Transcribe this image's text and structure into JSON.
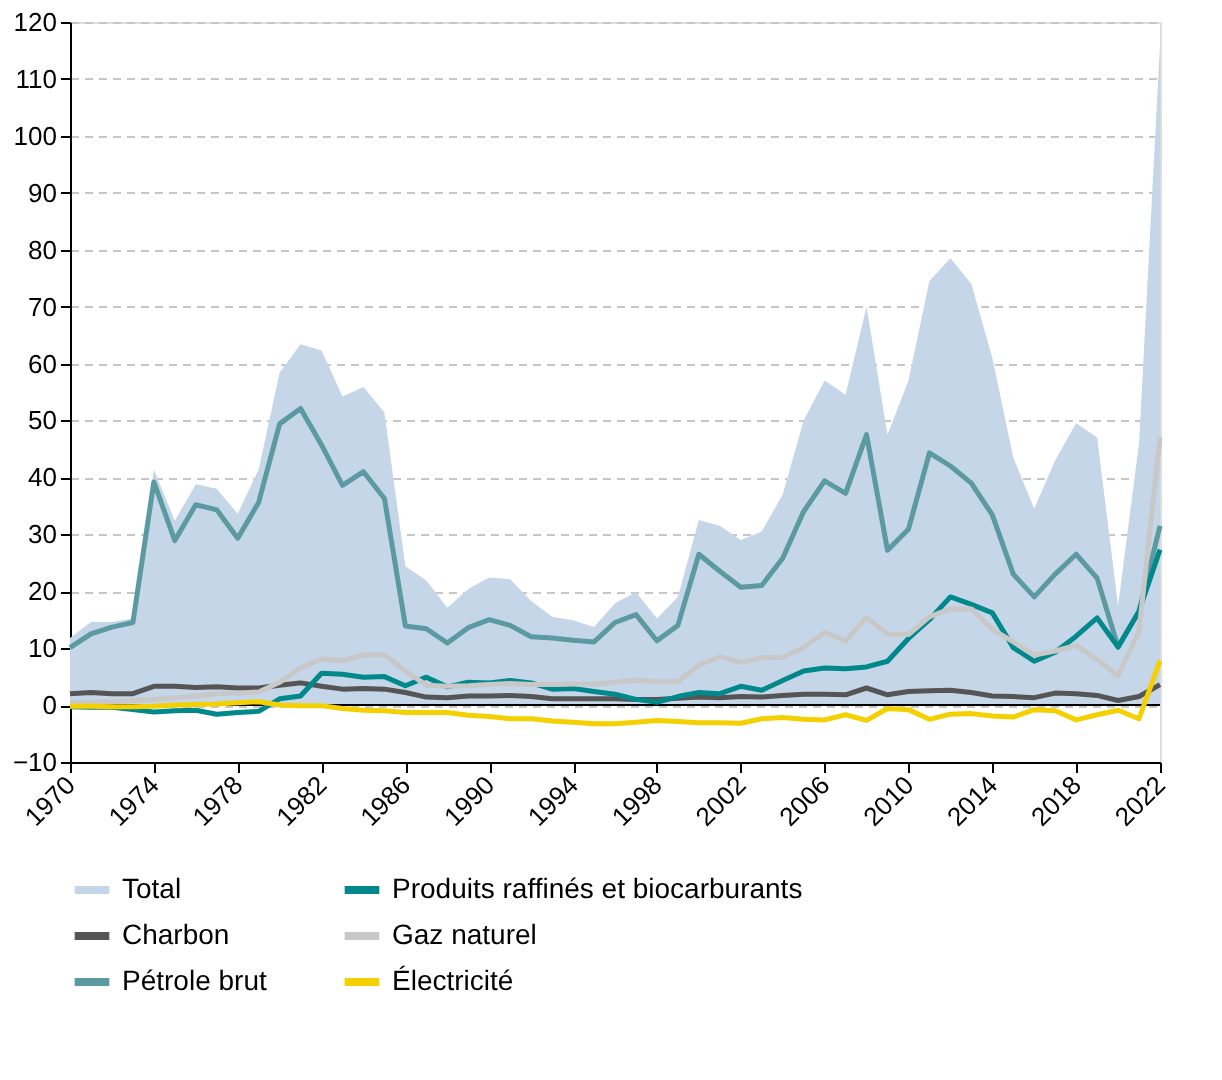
{
  "chart_data": {
    "type": "line",
    "x": [
      1970,
      1971,
      1972,
      1973,
      1974,
      1975,
      1976,
      1977,
      1978,
      1979,
      1980,
      1981,
      1982,
      1983,
      1984,
      1985,
      1986,
      1987,
      1988,
      1989,
      1990,
      1991,
      1992,
      1993,
      1994,
      1995,
      1996,
      1997,
      1998,
      1999,
      2000,
      2001,
      2002,
      2003,
      2004,
      2005,
      2006,
      2007,
      2008,
      2009,
      2010,
      2011,
      2012,
      2013,
      2014,
      2015,
      2016,
      2017,
      2018,
      2019,
      2020,
      2021,
      2022
    ],
    "series": [
      {
        "name": "Total",
        "type": "area",
        "color": "#c5d6e8",
        "values": [
          11.8,
          14.6,
          14.6,
          15.2,
          41.4,
          32.4,
          38.8,
          38,
          33.6,
          41.4,
          58.4,
          63.4,
          62.3,
          54.2,
          55.9,
          51.4,
          24.4,
          21.9,
          17.1,
          20.4,
          22.4,
          22.1,
          18.3,
          15.5,
          14.9,
          13.7,
          17.9,
          19.8,
          15.2,
          19,
          32.5,
          31.5,
          29,
          30.5,
          37,
          50,
          57,
          54.5,
          70,
          47.5,
          57,
          74.5,
          78.5,
          74,
          61,
          43.5,
          34.5,
          43,
          49.5,
          47,
          17.5,
          46,
          116
        ]
      },
      {
        "name": "Charbon",
        "color": "#555555",
        "values": [
          2,
          2.2,
          2,
          2,
          3.3,
          3.3,
          3.1,
          3.2,
          3,
          3,
          3.5,
          3.9,
          3.3,
          2.8,
          2.9,
          2.8,
          2.2,
          1.4,
          1.3,
          1.6,
          1.6,
          1.7,
          1.5,
          1.1,
          1.1,
          1.1,
          1.1,
          1,
          1,
          1.2,
          1.4,
          1.3,
          1.5,
          1.4,
          1.7,
          1.9,
          1.9,
          1.8,
          3,
          1.8,
          2.4,
          2.5,
          2.6,
          2.2,
          1.6,
          1.5,
          1.3,
          2.1,
          2,
          1.7,
          0.8,
          1.5,
          3.6
        ]
      },
      {
        "name": "Pétrole brut",
        "color": "#5a9aa0",
        "values": [
          10.1,
          12.5,
          13.7,
          14.5,
          39.2,
          28.9,
          35.2,
          34.3,
          29.3,
          35.6,
          49.4,
          52.1,
          45.7,
          38.6,
          41,
          36.3,
          13.9,
          13.4,
          10.9,
          13.6,
          15,
          14,
          12,
          11.8,
          11.4,
          11.1,
          14.5,
          15.9,
          11.3,
          14,
          26.5,
          23.5,
          20.7,
          21,
          25.8,
          34,
          39.4,
          37.2,
          47.5,
          27.2,
          30.9,
          44.3,
          42,
          39,
          33.4,
          23,
          19,
          23,
          26.5,
          22.3,
          10.2,
          16.5,
          31.5
        ]
      },
      {
        "name": "Produits raffinés et biocarburants",
        "color": "#00888a",
        "values": [
          -0.3,
          -0.4,
          -0.4,
          -0.8,
          -1.2,
          -1,
          -0.9,
          -1.6,
          -1.3,
          -1.1,
          1.1,
          1.6,
          5.6,
          5.4,
          4.9,
          5,
          3.4,
          4.9,
          3.2,
          4,
          3.9,
          4.3,
          3.9,
          2.8,
          2.9,
          2.4,
          1.9,
          1,
          0.5,
          1.5,
          2.2,
          2,
          3.3,
          2.6,
          4.3,
          6,
          6.5,
          6.4,
          6.7,
          7.7,
          11.7,
          15,
          19,
          17.7,
          16.2,
          10.1,
          7.7,
          9.3,
          12.1,
          15.3,
          10.2,
          16.5,
          27.3
        ]
      },
      {
        "name": "Gaz naturel",
        "color": "#c8c8c8",
        "values": [
          0.5,
          0.5,
          0.6,
          0.8,
          1,
          1.3,
          1.6,
          2,
          2.1,
          2.3,
          4,
          6.5,
          8.1,
          7.8,
          8.8,
          8.8,
          6,
          3.5,
          3.3,
          3.4,
          3.6,
          3.8,
          3.6,
          3.6,
          3.7,
          3.7,
          4,
          4.4,
          4.1,
          4.1,
          7,
          8.5,
          7.5,
          8.3,
          8.4,
          10.1,
          12.8,
          11.2,
          15.4,
          12.5,
          12.4,
          15.5,
          16.9,
          16.9,
          13.3,
          11.1,
          8.8,
          9.5,
          10.5,
          8,
          5.1,
          13,
          47
        ]
      },
      {
        "name": "Électricité",
        "color": "#f5d000",
        "values": [
          -0.2,
          -0.2,
          -0.3,
          -0.3,
          -0.2,
          0,
          0.1,
          0.2,
          0.4,
          0.6,
          0,
          -0.1,
          -0.1,
          -0.6,
          -0.9,
          -1,
          -1.3,
          -1.3,
          -1.3,
          -1.8,
          -2,
          -2.4,
          -2.4,
          -2.8,
          -3,
          -3.3,
          -3.3,
          -3,
          -2.7,
          -2.9,
          -3.1,
          -3.1,
          -3.2,
          -2.4,
          -2.2,
          -2.5,
          -2.6,
          -1.7,
          -2.7,
          -0.6,
          -0.8,
          -2.5,
          -1.6,
          -1.5,
          -1.9,
          -2.1,
          -0.8,
          -1,
          -2.6,
          -1.7,
          -0.9,
          -2.4,
          7.8
        ]
      }
    ],
    "xlim": [
      1970,
      2022
    ],
    "xticks": [
      1970,
      1974,
      1978,
      1982,
      1986,
      1990,
      1994,
      1998,
      2002,
      2006,
      2010,
      2014,
      2018,
      2022
    ],
    "ylim": [
      -10,
      120
    ],
    "yticks": [
      -10,
      0,
      10,
      20,
      30,
      40,
      50,
      60,
      70,
      80,
      90,
      100,
      110,
      120
    ],
    "ref_lines": [
      {
        "axis": "y",
        "value": 0,
        "color": "#000000"
      }
    ],
    "grid": "y",
    "legend": "bottom",
    "line_style": "solid",
    "marker": "none"
  }
}
